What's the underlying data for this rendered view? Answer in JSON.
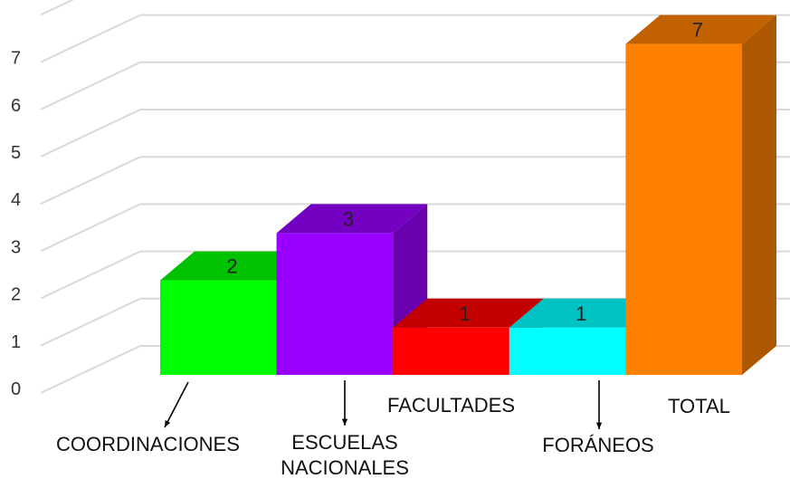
{
  "chart_data": {
    "type": "bar",
    "categories": [
      "COORDINACIONES",
      "ESCUELAS NACIONALES",
      "FACULTADES",
      "FORÁNEOS",
      "TOTAL"
    ],
    "category_label_lines": [
      [
        "COORDINACIONES"
      ],
      [
        "ESCUELAS",
        "NACIONALES"
      ],
      [
        "FACULTADES"
      ],
      [
        "FORÁNEOS"
      ],
      [
        "TOTAL"
      ]
    ],
    "values": [
      2,
      3,
      1,
      1,
      7
    ],
    "data_labels": [
      "2",
      "3",
      "1",
      "1",
      "7"
    ],
    "ylim": [
      0,
      7
    ],
    "yticks": [
      "0",
      "1",
      "2",
      "3",
      "4",
      "5",
      "6",
      "7"
    ],
    "grid": true,
    "style": "3d-column",
    "colors": [
      "#00ff00",
      "#9900ff",
      "#ff0000",
      "#00ffff",
      "#ff8000"
    ]
  }
}
